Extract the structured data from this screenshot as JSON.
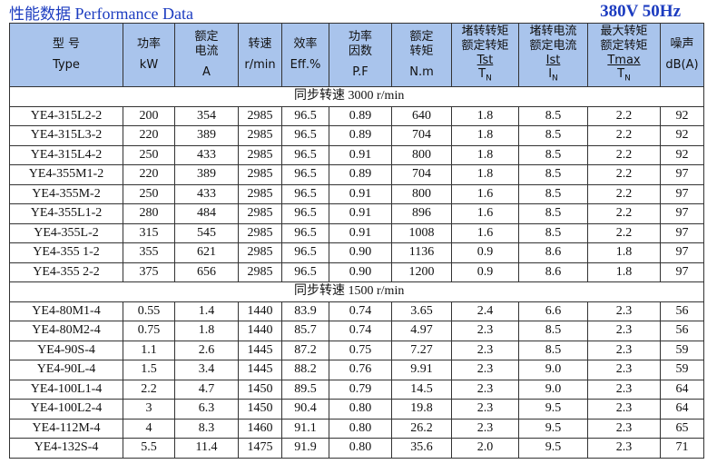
{
  "header": {
    "title_cn": "性能数据",
    "title_en": "Performance Data",
    "voltage": "380V 50Hz"
  },
  "table": {
    "columns": [
      {
        "cn": [
          "型 号"
        ],
        "en": "Type"
      },
      {
        "cn": [
          "功率"
        ],
        "en": "kW"
      },
      {
        "cn": [
          "额定",
          "电流"
        ],
        "en": "A"
      },
      {
        "cn": [
          "转速"
        ],
        "en": "r/min"
      },
      {
        "cn": [
          "效率"
        ],
        "en": "Eff.%"
      },
      {
        "cn": [
          "功率",
          "因数"
        ],
        "en": "P.F"
      },
      {
        "cn": [
          "额定",
          "转矩"
        ],
        "en": "N.m"
      },
      {
        "cn": [
          "堵转转矩",
          "额定转矩"
        ],
        "num": "Tst",
        "den": "T",
        "den_sub": "N"
      },
      {
        "cn": [
          "堵转电流",
          "额定电流"
        ],
        "num": "Ist",
        "den": "I",
        "den_sub": "N"
      },
      {
        "cn": [
          "最大转矩",
          "额定转矩"
        ],
        "num": "Tmax",
        "den": "T",
        "den_sub": "N"
      },
      {
        "cn": [
          "噪声"
        ],
        "en": "dB(A)"
      }
    ],
    "groups": [
      {
        "label": "同步转速  3000 r/min",
        "rows": [
          [
            "YE4-315L2-2",
            "200",
            "354",
            "2985",
            "96.5",
            "0.89",
            "640",
            "1.8",
            "8.5",
            "2.2",
            "92"
          ],
          [
            "YE4-315L3-2",
            "220",
            "389",
            "2985",
            "96.5",
            "0.89",
            "704",
            "1.8",
            "8.5",
            "2.2",
            "92"
          ],
          [
            "YE4-315L4-2",
            "250",
            "433",
            "2985",
            "96.5",
            "0.91",
            "800",
            "1.8",
            "8.5",
            "2.2",
            "92"
          ],
          [
            "YE4-355M1-2",
            "220",
            "389",
            "2985",
            "96.5",
            "0.89",
            "704",
            "1.8",
            "8.5",
            "2.2",
            "97"
          ],
          [
            "YE4-355M-2",
            "250",
            "433",
            "2985",
            "96.5",
            "0.91",
            "800",
            "1.6",
            "8.5",
            "2.2",
            "97"
          ],
          [
            "YE4-355L1-2",
            "280",
            "484",
            "2985",
            "96.5",
            "0.91",
            "896",
            "1.6",
            "8.5",
            "2.2",
            "97"
          ],
          [
            "YE4-355L-2",
            "315",
            "545",
            "2985",
            "96.5",
            "0.91",
            "1008",
            "1.6",
            "8.5",
            "2.2",
            "97"
          ],
          [
            "YE4-355 1-2",
            "355",
            "621",
            "2985",
            "96.5",
            "0.90",
            "1136",
            "0.9",
            "8.6",
            "1.8",
            "97"
          ],
          [
            "YE4-355 2-2",
            "375",
            "656",
            "2985",
            "96.5",
            "0.90",
            "1200",
            "0.9",
            "8.6",
            "1.8",
            "97"
          ]
        ]
      },
      {
        "label": "同步转速  1500 r/min",
        "rows": [
          [
            "YE4-80M1-4",
            "0.55",
            "1.4",
            "1440",
            "83.9",
            "0.74",
            "3.65",
            "2.4",
            "6.6",
            "2.3",
            "56"
          ],
          [
            "YE4-80M2-4",
            "0.75",
            "1.8",
            "1440",
            "85.7",
            "0.74",
            "4.97",
            "2.3",
            "8.5",
            "2.3",
            "56"
          ],
          [
            "YE4-90S-4",
            "1.1",
            "2.6",
            "1445",
            "87.2",
            "0.75",
            "7.27",
            "2.3",
            "8.5",
            "2.3",
            "59"
          ],
          [
            "YE4-90L-4",
            "1.5",
            "3.4",
            "1445",
            "88.2",
            "0.76",
            "9.91",
            "2.3",
            "9.0",
            "2.3",
            "59"
          ],
          [
            "YE4-100L1-4",
            "2.2",
            "4.7",
            "1450",
            "89.5",
            "0.79",
            "14.5",
            "2.3",
            "9.0",
            "2.3",
            "64"
          ],
          [
            "YE4-100L2-4",
            "3",
            "6.3",
            "1450",
            "90.4",
            "0.80",
            "19.8",
            "2.3",
            "9.5",
            "2.3",
            "64"
          ],
          [
            "YE4-112M-4",
            "4",
            "8.3",
            "1460",
            "91.1",
            "0.80",
            "26.2",
            "2.3",
            "9.5",
            "2.3",
            "65"
          ],
          [
            "YE4-132S-4",
            "5.5",
            "11.4",
            "1475",
            "91.9",
            "0.80",
            "35.6",
            "2.0",
            "9.5",
            "2.3",
            "71"
          ]
        ]
      }
    ]
  }
}
